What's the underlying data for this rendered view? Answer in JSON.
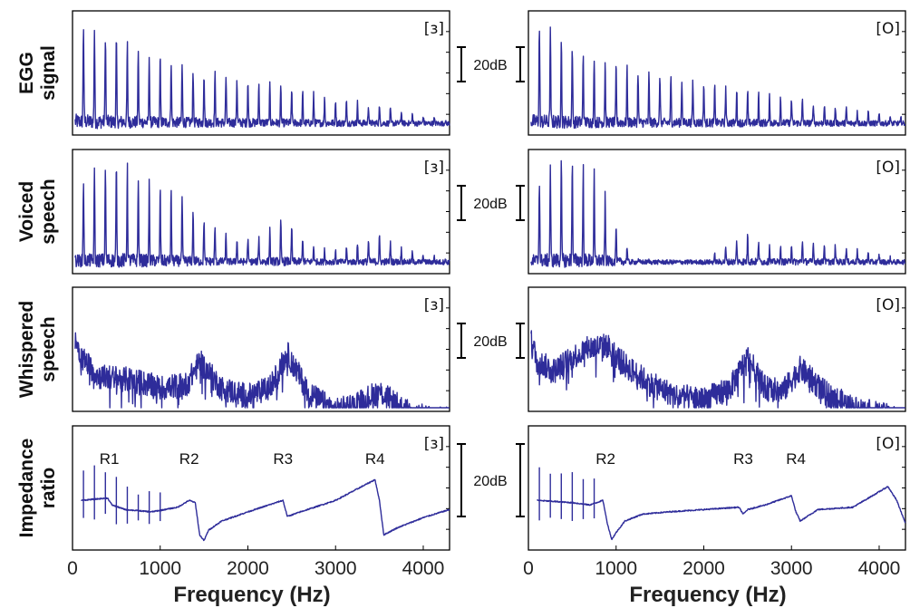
{
  "colors": {
    "trace": "#2e2c9a",
    "axis": "#000000",
    "background": "#ffffff"
  },
  "chart_data": {
    "type": "line",
    "xlabel": "Frequency (Hz)",
    "xlim": [
      0,
      4300
    ],
    "x_ticks": [
      "0",
      "1000",
      "2000",
      "3000",
      "4000"
    ],
    "columns": [
      {
        "vowel": "[ɜ]",
        "f0_hz": 125
      },
      {
        "vowel": "[O]",
        "f0_hz": 125
      }
    ],
    "rows": [
      {
        "key": "egg",
        "label_lines": [
          "EGG",
          "signal"
        ],
        "scale_label": "20dB"
      },
      {
        "key": "voiced",
        "label_lines": [
          "Voiced",
          "speech"
        ],
        "scale_label": "20dB"
      },
      {
        "key": "whispered",
        "label_lines": [
          "Whispered",
          "speech"
        ],
        "scale_label": "20dB"
      },
      {
        "key": "impedance",
        "label_lines": [
          "Impedance",
          "ratio"
        ],
        "scale_label": "20dB"
      }
    ],
    "resonances": [
      {
        "vowel": "[ɜ]",
        "peaks": [
          {
            "label": "R1",
            "hz": 420
          },
          {
            "label": "R2",
            "hz": 1330
          },
          {
            "label": "R3",
            "hz": 2400
          },
          {
            "label": "R4",
            "hz": 3450
          }
        ]
      },
      {
        "vowel": "[O]",
        "peaks": [
          {
            "label": "R2",
            "hz": 880
          },
          {
            "label": "R3",
            "hz": 2450
          },
          {
            "label": "R4",
            "hz": 3050
          }
        ]
      }
    ],
    "series": [
      {
        "vowel": "[ɜ]",
        "row": "egg",
        "envelope_hz": [
          0,
          500,
          1000,
          1500,
          2000,
          2500,
          3000,
          3500,
          4000,
          4300
        ],
        "envelope_level": [
          0.95,
          0.78,
          0.62,
          0.5,
          0.42,
          0.34,
          0.27,
          0.2,
          0.12,
          0.08
        ],
        "formants_hz": []
      },
      {
        "vowel": "[O]",
        "row": "egg",
        "envelope_hz": [
          0,
          500,
          1000,
          1500,
          2000,
          2500,
          3000,
          3500,
          4000,
          4300
        ],
        "envelope_level": [
          0.95,
          0.72,
          0.55,
          0.46,
          0.4,
          0.33,
          0.27,
          0.2,
          0.14,
          0.1
        ],
        "formants_hz": []
      },
      {
        "vowel": "[ɜ]",
        "row": "voiced",
        "envelope_hz": [
          0,
          300,
          600,
          900,
          1200,
          1500,
          1800,
          2100,
          2400,
          2700,
          3000,
          3300,
          3500,
          3800,
          4300
        ],
        "envelope_level": [
          0.7,
          0.85,
          0.88,
          0.72,
          0.62,
          0.42,
          0.26,
          0.26,
          0.42,
          0.22,
          0.15,
          0.22,
          0.28,
          0.15,
          0.08
        ],
        "formants_hz": []
      },
      {
        "vowel": "[O]",
        "row": "voiced",
        "envelope_hz": [
          0,
          300,
          500,
          800,
          1000,
          1200,
          1600,
          2000,
          2500,
          2800,
          3100,
          3500,
          4000,
          4300
        ],
        "envelope_level": [
          0.7,
          0.88,
          0.92,
          0.78,
          0.38,
          0.08,
          0.06,
          0.06,
          0.3,
          0.18,
          0.25,
          0.2,
          0.12,
          0.06
        ],
        "formants_hz": []
      },
      {
        "vowel": "[ɜ]",
        "row": "whispered",
        "envelope_hz": [
          0,
          100,
          300,
          700,
          1000,
          1300,
          1450,
          1700,
          2000,
          2250,
          2450,
          2700,
          3000,
          3200,
          3500,
          3800,
          4100,
          4300
        ],
        "envelope_level": [
          0.85,
          0.62,
          0.45,
          0.42,
          0.35,
          0.38,
          0.58,
          0.35,
          0.28,
          0.35,
          0.65,
          0.3,
          0.15,
          0.2,
          0.32,
          0.15,
          0.08,
          0.08
        ],
        "formants_hz": []
      },
      {
        "vowel": "[O]",
        "row": "whispered",
        "envelope_hz": [
          0,
          100,
          300,
          500,
          700,
          900,
          1100,
          1400,
          1700,
          2000,
          2300,
          2500,
          2700,
          2900,
          3100,
          3400,
          3700,
          4000,
          4300
        ],
        "envelope_level": [
          0.85,
          0.58,
          0.5,
          0.62,
          0.7,
          0.72,
          0.55,
          0.38,
          0.28,
          0.25,
          0.35,
          0.62,
          0.35,
          0.32,
          0.52,
          0.3,
          0.18,
          0.12,
          0.08
        ],
        "formants_hz": []
      },
      {
        "vowel": "[ɜ]",
        "row": "impedance",
        "envelope_hz": [
          100,
          400,
          450,
          600,
          900,
          1200,
          1330,
          1400,
          1450,
          1500,
          1550,
          1700,
          2000,
          2400,
          2450,
          2600,
          3000,
          3450,
          3500,
          3550,
          3700,
          4000,
          4300
        ],
        "envelope_level": [
          0.4,
          0.42,
          0.36,
          0.32,
          0.3,
          0.34,
          0.4,
          0.38,
          0.1,
          0.05,
          0.14,
          0.22,
          0.3,
          0.4,
          0.26,
          0.3,
          0.4,
          0.58,
          0.4,
          0.1,
          0.16,
          0.25,
          0.32
        ],
        "formants_hz": []
      },
      {
        "vowel": "[O]",
        "row": "impedance",
        "envelope_hz": [
          100,
          500,
          700,
          850,
          900,
          950,
          1000,
          1100,
          1300,
          1600,
          2000,
          2400,
          2450,
          2500,
          2700,
          3000,
          3050,
          3100,
          3300,
          3700,
          4100,
          4200,
          4300
        ],
        "envelope_level": [
          0.4,
          0.38,
          0.36,
          0.4,
          0.2,
          0.06,
          0.12,
          0.22,
          0.28,
          0.3,
          0.32,
          0.34,
          0.28,
          0.32,
          0.36,
          0.44,
          0.3,
          0.22,
          0.32,
          0.34,
          0.52,
          0.4,
          0.2
        ],
        "formants_hz": []
      }
    ]
  }
}
